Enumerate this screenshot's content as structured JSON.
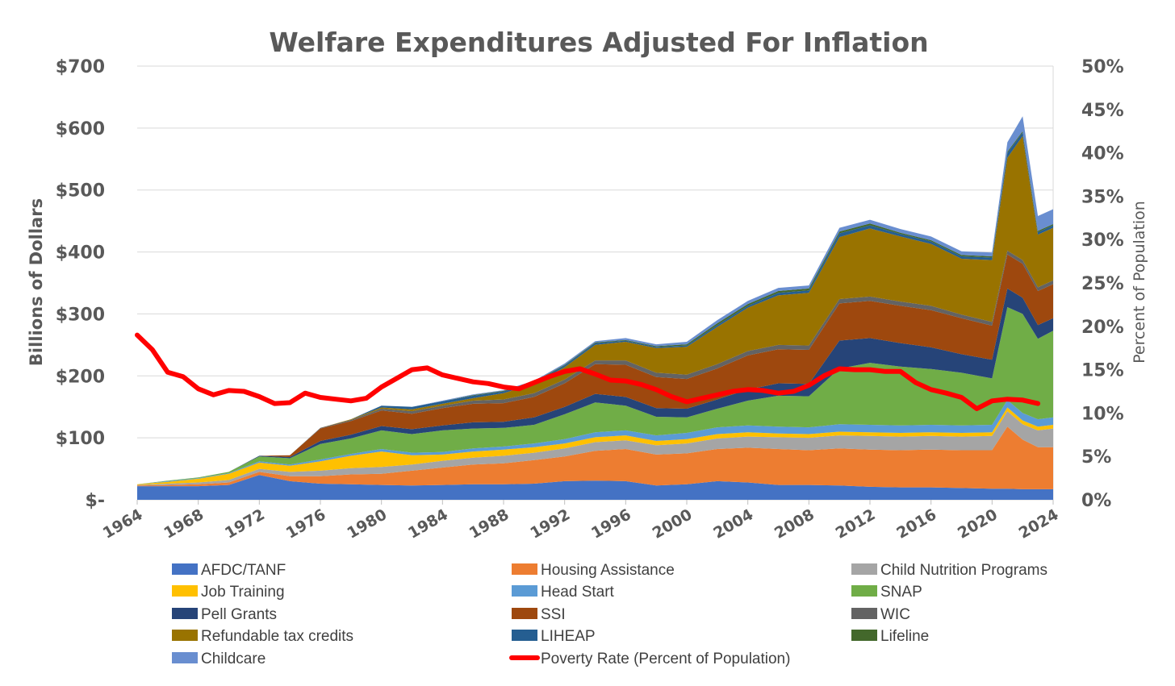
{
  "chart_data": {
    "type": "area",
    "title": "Welfare Expenditures Adjusted For Inflation",
    "ylabel": "Billions of Dollars",
    "y2label": "Percent of Population",
    "ylim": [
      0,
      700
    ],
    "y2lim": [
      0,
      50
    ],
    "yticks": [
      "$-",
      "$100",
      "$200",
      "$300",
      "$400",
      "$500",
      "$600",
      "$700"
    ],
    "y2ticks": [
      "0%",
      "5%",
      "10%",
      "15%",
      "20%",
      "25%",
      "30%",
      "35%",
      "40%",
      "45%",
      "50%"
    ],
    "xtick_labels": [
      "1964",
      "1968",
      "1972",
      "1976",
      "1980",
      "1984",
      "1988",
      "1992",
      "1996",
      "2000",
      "2004",
      "2008",
      "2012",
      "2016",
      "2020",
      "2024"
    ],
    "grid": true,
    "legend_position": "bottom",
    "x": [
      1964,
      1966,
      1968,
      1970,
      1972,
      1974,
      1976,
      1978,
      1980,
      1982,
      1984,
      1986,
      1988,
      1990,
      1992,
      1994,
      1996,
      1998,
      2000,
      2002,
      2004,
      2006,
      2008,
      2010,
      2012,
      2014,
      2016,
      2018,
      2020,
      2021,
      2022,
      2023,
      2024
    ],
    "series": [
      {
        "name": "AFDC/TANF",
        "color": "#4472c4",
        "values": [
          22,
          22,
          22,
          24,
          40,
          30,
          26,
          25,
          24,
          23,
          24,
          25,
          25,
          26,
          30,
          31,
          30,
          23,
          25,
          30,
          28,
          24,
          24,
          23,
          21,
          20,
          20,
          19,
          18,
          18,
          17,
          17,
          17
        ]
      },
      {
        "name": "Housing Assistance",
        "color": "#ed7d31",
        "values": [
          1,
          2,
          3,
          4,
          5,
          8,
          12,
          16,
          18,
          24,
          28,
          32,
          34,
          38,
          40,
          48,
          52,
          50,
          50,
          52,
          56,
          58,
          56,
          60,
          60,
          60,
          61,
          61,
          62,
          100,
          80,
          68,
          68
        ]
      },
      {
        "name": "Child Nutrition Programs",
        "color": "#a5a5a5",
        "values": [
          1,
          2,
          3,
          4,
          5,
          7,
          9,
          10,
          11,
          10,
          11,
          11,
          12,
          12,
          13,
          14,
          14,
          15,
          16,
          17,
          18,
          19,
          20,
          21,
          22,
          22,
          22,
          22,
          23,
          25,
          25,
          27,
          30
        ]
      },
      {
        "name": "Job Training",
        "color": "#ffc000",
        "values": [
          1,
          3,
          6,
          10,
          10,
          10,
          15,
          20,
          25,
          15,
          10,
          10,
          10,
          9,
          8,
          8,
          8,
          7,
          7,
          7,
          7,
          6,
          6,
          6,
          6,
          6,
          6,
          6,
          6,
          6,
          6,
          6,
          6
        ]
      },
      {
        "name": "Head Start",
        "color": "#5b9bd5",
        "values": [
          0,
          1,
          1,
          1,
          2,
          2,
          3,
          3,
          4,
          4,
          4,
          5,
          5,
          6,
          7,
          8,
          8,
          9,
          10,
          11,
          11,
          11,
          11,
          12,
          12,
          12,
          12,
          12,
          12,
          12,
          12,
          12,
          12
        ]
      },
      {
        "name": "SNAP",
        "color": "#70ad47",
        "values": [
          0,
          1,
          1,
          2,
          8,
          10,
          25,
          25,
          30,
          30,
          35,
          32,
          30,
          30,
          40,
          48,
          40,
          30,
          25,
          30,
          40,
          50,
          50,
          90,
          100,
          95,
          90,
          85,
          75,
          150,
          160,
          130,
          140
        ]
      },
      {
        "name": "Pell Grants",
        "color": "#264478",
        "values": [
          0,
          0,
          0,
          0,
          1,
          2,
          5,
          6,
          7,
          8,
          8,
          10,
          10,
          12,
          12,
          14,
          14,
          14,
          14,
          15,
          18,
          20,
          20,
          45,
          40,
          38,
          35,
          30,
          30,
          30,
          26,
          22,
          20
        ]
      },
      {
        "name": "SSI",
        "color": "#9e480e",
        "values": [
          0,
          0,
          0,
          0,
          0,
          3,
          20,
          22,
          25,
          25,
          28,
          30,
          30,
          33,
          38,
          48,
          52,
          50,
          48,
          50,
          55,
          55,
          55,
          60,
          60,
          60,
          60,
          58,
          55,
          55,
          55,
          55,
          55
        ]
      },
      {
        "name": "WIC",
        "color": "#636363",
        "values": [
          0,
          0,
          0,
          0,
          0,
          0,
          1,
          2,
          3,
          4,
          4,
          5,
          6,
          6,
          6,
          6,
          7,
          7,
          7,
          7,
          7,
          7,
          7,
          7,
          7,
          7,
          7,
          6,
          6,
          6,
          6,
          6,
          6
        ]
      },
      {
        "name": "Refundable tax credits",
        "color": "#997300",
        "values": [
          0,
          0,
          0,
          0,
          0,
          0,
          0,
          1,
          2,
          3,
          3,
          4,
          10,
          15,
          20,
          25,
          30,
          40,
          45,
          60,
          70,
          80,
          85,
          100,
          110,
          105,
          100,
          90,
          100,
          150,
          200,
          85,
          85
        ]
      },
      {
        "name": "LIHEAP",
        "color": "#255e91",
        "values": [
          0,
          0,
          0,
          0,
          0,
          0,
          0,
          0,
          3,
          4,
          4,
          4,
          3,
          3,
          3,
          3,
          2,
          2,
          2,
          3,
          3,
          4,
          4,
          6,
          5,
          4,
          4,
          4,
          4,
          8,
          6,
          4,
          4
        ]
      },
      {
        "name": "Lifeline",
        "color": "#43682b",
        "values": [
          0,
          0,
          0,
          0,
          0,
          0,
          0,
          0,
          0,
          0,
          0,
          1,
          1,
          1,
          1,
          1,
          1,
          1,
          2,
          3,
          3,
          3,
          3,
          3,
          3,
          2,
          2,
          2,
          2,
          2,
          2,
          2,
          2
        ]
      },
      {
        "name": "Childcare",
        "color": "#698ed0",
        "values": [
          0,
          0,
          0,
          0,
          0,
          0,
          0,
          0,
          0,
          0,
          1,
          1,
          1,
          1,
          2,
          2,
          3,
          3,
          4,
          5,
          5,
          5,
          5,
          6,
          6,
          6,
          6,
          6,
          6,
          15,
          24,
          24,
          24
        ]
      }
    ],
    "poverty_series": {
      "name": "Poverty Rate (Percent of Population)",
      "color": "#ff0000",
      "x": [
        1964,
        1965,
        1966,
        1967,
        1968,
        1969,
        1970,
        1971,
        1972,
        1973,
        1974,
        1975,
        1976,
        1977,
        1978,
        1979,
        1980,
        1981,
        1982,
        1983,
        1984,
        1985,
        1986,
        1987,
        1988,
        1989,
        1990,
        1991,
        1992,
        1993,
        1994,
        1995,
        1996,
        1997,
        1998,
        1999,
        2000,
        2001,
        2002,
        2003,
        2004,
        2005,
        2006,
        2007,
        2008,
        2009,
        2010,
        2011,
        2012,
        2013,
        2014,
        2015,
        2016,
        2017,
        2018,
        2019,
        2020,
        2021,
        2022,
        2023
      ],
      "values": [
        19.0,
        17.3,
        14.7,
        14.2,
        12.8,
        12.1,
        12.6,
        12.5,
        11.9,
        11.1,
        11.2,
        12.3,
        11.8,
        11.6,
        11.4,
        11.7,
        13.0,
        14.0,
        15.0,
        15.2,
        14.4,
        14.0,
        13.6,
        13.4,
        13.0,
        12.8,
        13.5,
        14.2,
        14.8,
        15.1,
        14.5,
        13.8,
        13.7,
        13.3,
        12.7,
        11.9,
        11.3,
        11.7,
        12.1,
        12.5,
        12.7,
        12.6,
        12.3,
        12.5,
        13.2,
        14.3,
        15.1,
        15.0,
        15.0,
        14.8,
        14.8,
        13.5,
        12.7,
        12.3,
        11.8,
        10.5,
        11.4,
        11.6,
        11.5,
        11.1
      ]
    }
  },
  "legend": [
    {
      "label": "AFDC/TANF",
      "color": "#4472c4",
      "kind": "box"
    },
    {
      "label": "Housing Assistance",
      "color": "#ed7d31",
      "kind": "box"
    },
    {
      "label": "Child Nutrition Programs",
      "color": "#a5a5a5",
      "kind": "box"
    },
    {
      "label": "Job Training",
      "color": "#ffc000",
      "kind": "box"
    },
    {
      "label": "Head Start",
      "color": "#5b9bd5",
      "kind": "box"
    },
    {
      "label": "SNAP",
      "color": "#70ad47",
      "kind": "box"
    },
    {
      "label": "Pell Grants",
      "color": "#264478",
      "kind": "box"
    },
    {
      "label": "SSI",
      "color": "#9e480e",
      "kind": "box"
    },
    {
      "label": "WIC",
      "color": "#636363",
      "kind": "box"
    },
    {
      "label": "Refundable tax credits",
      "color": "#997300",
      "kind": "box"
    },
    {
      "label": "LIHEAP",
      "color": "#255e91",
      "kind": "box"
    },
    {
      "label": "Lifeline",
      "color": "#43682b",
      "kind": "box"
    },
    {
      "label": "Childcare",
      "color": "#698ed0",
      "kind": "box"
    },
    {
      "label": "Poverty Rate (Percent of Population)",
      "color": "#ff0000",
      "kind": "line"
    }
  ]
}
